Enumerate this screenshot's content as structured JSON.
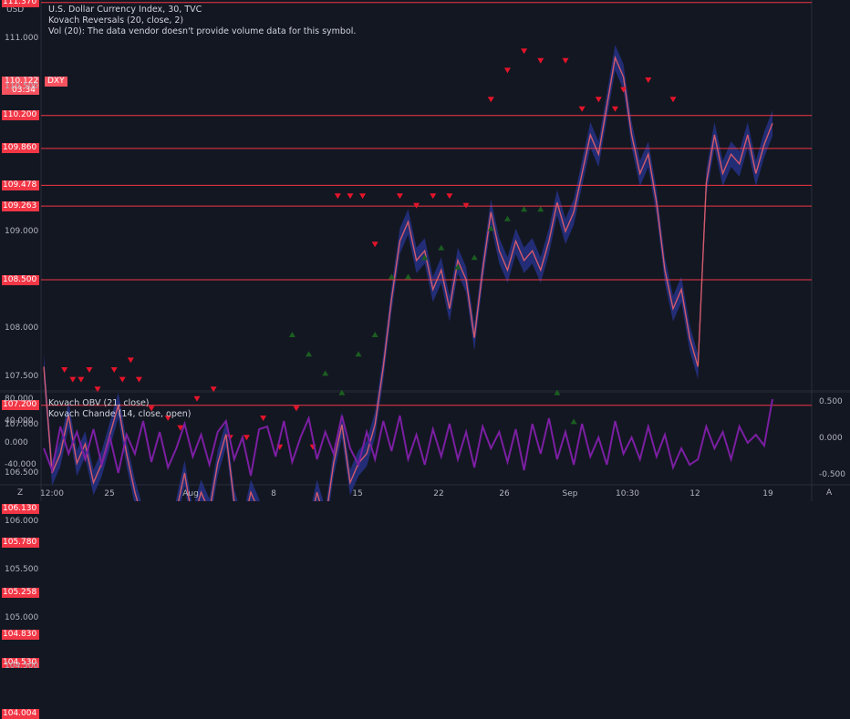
{
  "currency_label": "USD",
  "legend": {
    "title": "U.S. Dollar Currency Index, 30, TVC",
    "indicator1": "Kovach Reversals (20, close, 2)",
    "volume_note": "Vol (20): The data vendor doesn't provide volume data for this symbol.",
    "lower1": "Kovach OBV (21, close)",
    "lower2": "Kovach Chande (14, close, open)"
  },
  "price_badge": {
    "price": "110.122",
    "symbol": "DXY",
    "countdown": "03:34"
  },
  "bottom_corners": {
    "left": "Z",
    "right": "A"
  },
  "colors": {
    "background": "#131722",
    "red_level": "#f23645",
    "oscillator": "#7b1fa2",
    "candle_up": "#b2b5be",
    "up_arrow": "#1b5e20",
    "down_arrow": "#e5142a",
    "band": "#283593"
  },
  "chart_data": {
    "type": "line",
    "y_ticks": [
      "111.000",
      "110.500",
      "109.000",
      "108.000",
      "107.500",
      "107.000",
      "106.500",
      "106.000",
      "105.500",
      "105.000",
      "104.500"
    ],
    "y_tick_values": [
      111.0,
      110.5,
      109.0,
      108.0,
      107.5,
      107.0,
      106.5,
      106.0,
      105.5,
      105.0,
      104.5
    ],
    "level_labels": [
      "111.370",
      "110.200",
      "109.860",
      "109.478",
      "109.263",
      "108.500",
      "107.200",
      "106.130",
      "105.780",
      "105.258",
      "104.830",
      "104.530",
      "104.004"
    ],
    "levels": [
      111.37,
      110.2,
      109.86,
      109.478,
      109.263,
      108.5,
      107.2,
      106.13,
      105.78,
      105.258,
      104.83,
      104.53,
      104.004
    ],
    "x_ticks": [
      "12:00",
      "25",
      "Aug",
      "8",
      "15",
      "22",
      "26",
      "Sep",
      "10:30",
      "12",
      "19"
    ],
    "osc_left_ticks": [
      "80.000",
      "40.000",
      "0.000",
      "-40.000"
    ],
    "osc_left_values": [
      80,
      40,
      0,
      -40
    ],
    "osc_right_ticks": [
      "0.500",
      "0.000",
      "-0.500"
    ],
    "osc_right_values": [
      0.5,
      0.0,
      -0.5
    ],
    "price_path": [
      [
        0,
        107.6
      ],
      [
        0.02,
        106.5
      ],
      [
        0.04,
        106.7
      ],
      [
        0.06,
        107.1
      ],
      [
        0.08,
        106.6
      ],
      [
        0.1,
        106.8
      ],
      [
        0.12,
        106.4
      ],
      [
        0.14,
        106.6
      ],
      [
        0.16,
        106.9
      ],
      [
        0.18,
        107.2
      ],
      [
        0.2,
        106.7
      ],
      [
        0.22,
        106.3
      ],
      [
        0.24,
        106.0
      ],
      [
        0.26,
        105.7
      ],
      [
        0.28,
        105.4
      ],
      [
        0.3,
        105.6
      ],
      [
        0.32,
        106.1
      ],
      [
        0.34,
        106.5
      ],
      [
        0.36,
        106.0
      ],
      [
        0.38,
        106.3
      ],
      [
        0.4,
        106.1
      ],
      [
        0.42,
        106.6
      ],
      [
        0.44,
        106.9
      ],
      [
        0.46,
        106.2
      ],
      [
        0.48,
        105.9
      ],
      [
        0.5,
        106.3
      ],
      [
        0.52,
        106.1
      ],
      [
        0.54,
        105.8
      ],
      [
        0.56,
        104.8
      ],
      [
        0.58,
        105.1
      ],
      [
        0.6,
        105.6
      ],
      [
        0.62,
        105.3
      ],
      [
        0.64,
        105.9
      ],
      [
        0.66,
        106.3
      ],
      [
        0.68,
        106.0
      ],
      [
        0.7,
        106.6
      ],
      [
        0.72,
        107.0
      ],
      [
        0.74,
        106.4
      ],
      [
        0.76,
        106.6
      ],
      [
        0.78,
        106.7
      ],
      [
        0.8,
        107.0
      ],
      [
        0.82,
        107.6
      ],
      [
        0.84,
        108.3
      ],
      [
        0.86,
        108.9
      ],
      [
        0.88,
        109.1
      ],
      [
        0.9,
        108.7
      ],
      [
        0.92,
        108.8
      ],
      [
        0.94,
        108.4
      ],
      [
        0.96,
        108.6
      ],
      [
        0.98,
        108.2
      ],
      [
        1.0,
        108.7
      ],
      [
        1.02,
        108.5
      ],
      [
        1.04,
        107.9
      ],
      [
        1.06,
        108.6
      ],
      [
        1.08,
        109.2
      ],
      [
        1.1,
        108.8
      ],
      [
        1.12,
        108.6
      ],
      [
        1.14,
        108.9
      ],
      [
        1.16,
        108.7
      ],
      [
        1.18,
        108.8
      ],
      [
        1.2,
        108.6
      ],
      [
        1.22,
        108.9
      ],
      [
        1.24,
        109.3
      ],
      [
        1.26,
        109.0
      ],
      [
        1.28,
        109.2
      ],
      [
        1.3,
        109.6
      ],
      [
        1.32,
        110.0
      ],
      [
        1.34,
        109.8
      ],
      [
        1.36,
        110.3
      ],
      [
        1.38,
        110.8
      ],
      [
        1.4,
        110.6
      ],
      [
        1.42,
        110.0
      ],
      [
        1.44,
        109.6
      ],
      [
        1.46,
        109.8
      ],
      [
        1.48,
        109.3
      ],
      [
        1.5,
        108.6
      ],
      [
        1.52,
        108.2
      ],
      [
        1.54,
        108.4
      ],
      [
        1.56,
        107.9
      ],
      [
        1.58,
        107.6
      ],
      [
        1.6,
        109.5
      ],
      [
        1.62,
        110.0
      ],
      [
        1.64,
        109.6
      ],
      [
        1.66,
        109.8
      ],
      [
        1.68,
        109.7
      ],
      [
        1.7,
        110.0
      ],
      [
        1.72,
        109.6
      ],
      [
        1.74,
        109.9
      ],
      [
        1.76,
        110.12
      ]
    ],
    "down_arrow_prices": [
      107.5,
      107.4,
      107.4,
      107.5,
      107.3,
      107.5,
      107.4,
      107.6,
      107.4,
      107.1,
      107.0,
      106.9,
      107.2,
      107.3,
      106.8,
      106.8,
      107.0,
      106.7,
      107.1,
      106.7,
      109.3,
      109.3,
      109.3,
      108.8,
      109.3,
      109.2,
      109.3,
      109.3,
      109.2,
      110.3,
      110.6,
      110.8,
      110.7,
      110.7,
      110.2,
      110.3,
      110.2,
      110.4,
      110.5,
      110.3
    ],
    "down_arrow_x": [
      0.05,
      0.07,
      0.09,
      0.11,
      0.13,
      0.17,
      0.19,
      0.21,
      0.23,
      0.26,
      0.3,
      0.33,
      0.37,
      0.41,
      0.45,
      0.49,
      0.53,
      0.57,
      0.61,
      0.65,
      0.71,
      0.74,
      0.77,
      0.8,
      0.86,
      0.9,
      0.94,
      0.98,
      1.02,
      1.08,
      1.12,
      1.16,
      1.2,
      1.26,
      1.3,
      1.34,
      1.38,
      1.4,
      1.46,
      1.52
    ],
    "up_arrow_prices": [
      106.0,
      106.0,
      106.0,
      105.9,
      105.9,
      105.9,
      105.4,
      105.2,
      105.0,
      105.7,
      105.8,
      105.9,
      104.5,
      104.8,
      106.0,
      106.0,
      108.0,
      107.8,
      107.6,
      107.4,
      107.8,
      108.0,
      108.6,
      108.6,
      108.8,
      108.9,
      108.7,
      108.8,
      109.1,
      109.2,
      109.3,
      109.3,
      107.4,
      107.1
    ],
    "up_arrow_x": [
      0.04,
      0.06,
      0.08,
      0.12,
      0.14,
      0.16,
      0.2,
      0.24,
      0.28,
      0.32,
      0.36,
      0.4,
      0.44,
      0.48,
      0.52,
      0.56,
      0.6,
      0.64,
      0.68,
      0.72,
      0.76,
      0.8,
      0.84,
      0.88,
      0.92,
      0.96,
      1.0,
      1.04,
      1.08,
      1.12,
      1.16,
      1.2,
      1.24,
      1.28
    ],
    "osc_path": [
      [
        0,
        -10
      ],
      [
        0.02,
        -50
      ],
      [
        0.04,
        30
      ],
      [
        0.06,
        -20
      ],
      [
        0.08,
        20
      ],
      [
        0.1,
        -30
      ],
      [
        0.12,
        25
      ],
      [
        0.14,
        -40
      ],
      [
        0.16,
        10
      ],
      [
        0.18,
        -55
      ],
      [
        0.2,
        15
      ],
      [
        0.22,
        -20
      ],
      [
        0.24,
        40
      ],
      [
        0.26,
        -35
      ],
      [
        0.28,
        20
      ],
      [
        0.3,
        -45
      ],
      [
        0.32,
        -10
      ],
      [
        0.34,
        35
      ],
      [
        0.36,
        -25
      ],
      [
        0.38,
        15
      ],
      [
        0.4,
        -40
      ],
      [
        0.42,
        20
      ],
      [
        0.44,
        40
      ],
      [
        0.46,
        -30
      ],
      [
        0.48,
        10
      ],
      [
        0.5,
        -60
      ],
      [
        0.52,
        25
      ],
      [
        0.54,
        30
      ],
      [
        0.56,
        -25
      ],
      [
        0.58,
        40
      ],
      [
        0.6,
        -35
      ],
      [
        0.62,
        10
      ],
      [
        0.64,
        45
      ],
      [
        0.66,
        -30
      ],
      [
        0.68,
        20
      ],
      [
        0.7,
        -20
      ],
      [
        0.72,
        50
      ],
      [
        0.74,
        -10
      ],
      [
        0.76,
        -40
      ],
      [
        0.78,
        20
      ],
      [
        0.8,
        -30
      ],
      [
        0.82,
        40
      ],
      [
        0.84,
        -15
      ],
      [
        0.86,
        50
      ],
      [
        0.88,
        -30
      ],
      [
        0.9,
        15
      ],
      [
        0.92,
        -40
      ],
      [
        0.94,
        25
      ],
      [
        0.96,
        -25
      ],
      [
        0.98,
        35
      ],
      [
        1.0,
        -30
      ],
      [
        1.02,
        20
      ],
      [
        1.04,
        -45
      ],
      [
        1.06,
        30
      ],
      [
        1.08,
        -10
      ],
      [
        1.1,
        20
      ],
      [
        1.12,
        -35
      ],
      [
        1.14,
        25
      ],
      [
        1.16,
        -50
      ],
      [
        1.18,
        35
      ],
      [
        1.2,
        -20
      ],
      [
        1.22,
        45
      ],
      [
        1.24,
        -30
      ],
      [
        1.26,
        20
      ],
      [
        1.28,
        -40
      ],
      [
        1.3,
        35
      ],
      [
        1.32,
        -25
      ],
      [
        1.34,
        10
      ],
      [
        1.36,
        -40
      ],
      [
        1.38,
        40
      ],
      [
        1.4,
        -20
      ],
      [
        1.42,
        10
      ],
      [
        1.44,
        -30
      ],
      [
        1.46,
        30
      ],
      [
        1.48,
        -25
      ],
      [
        1.5,
        15
      ],
      [
        1.52,
        -45
      ],
      [
        1.54,
        -10
      ],
      [
        1.56,
        -40
      ],
      [
        1.58,
        -30
      ],
      [
        1.6,
        30
      ],
      [
        1.62,
        -10
      ],
      [
        1.64,
        20
      ],
      [
        1.66,
        -30
      ],
      [
        1.68,
        30
      ],
      [
        1.7,
        0
      ],
      [
        1.72,
        15
      ],
      [
        1.74,
        -5
      ],
      [
        1.76,
        80
      ]
    ]
  }
}
